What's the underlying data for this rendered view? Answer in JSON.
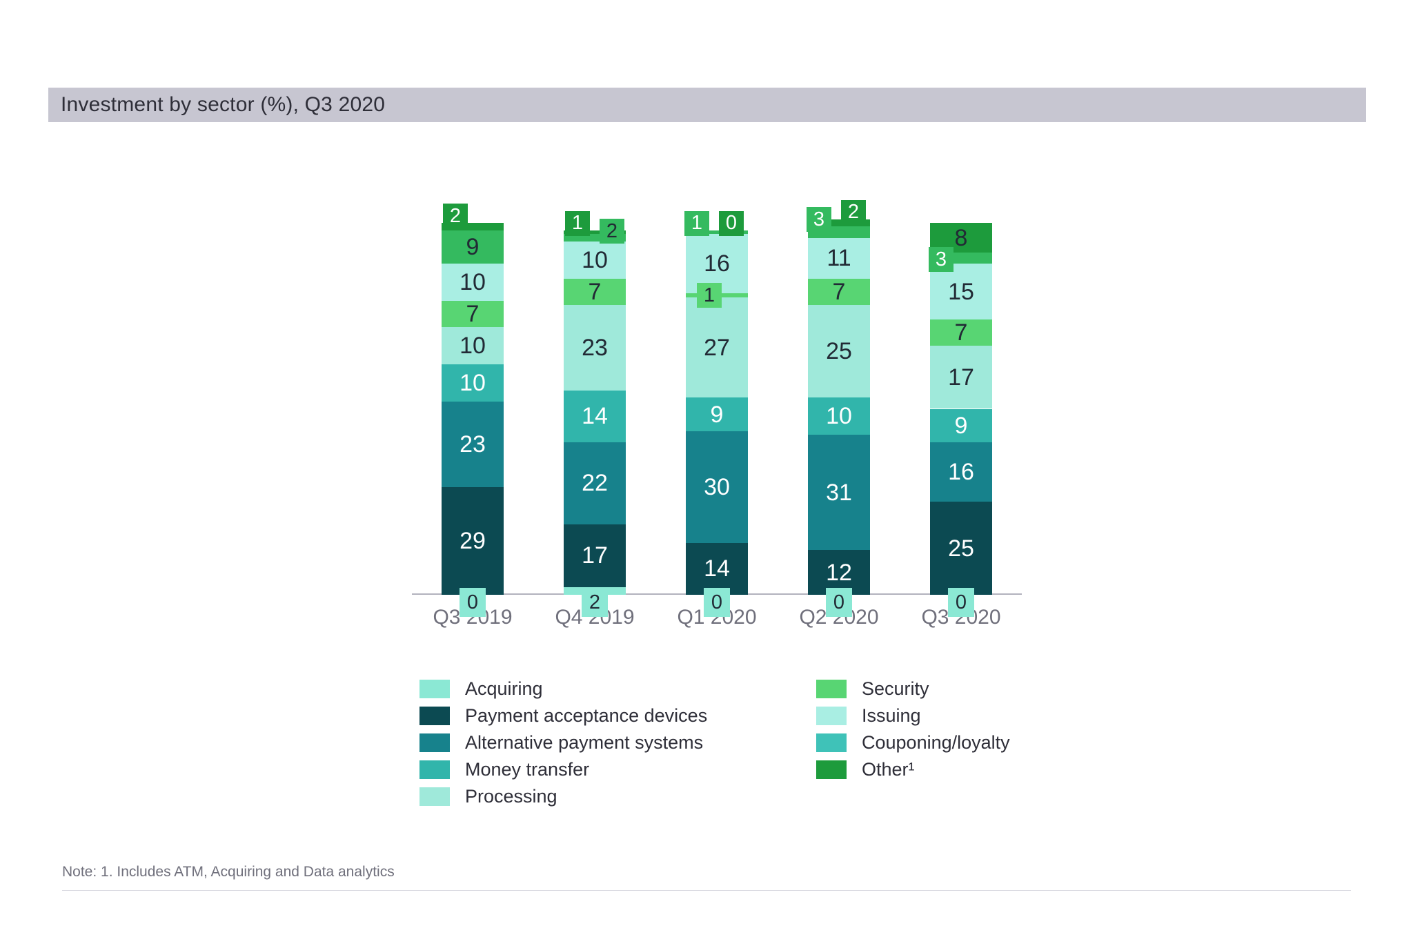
{
  "chart_data": {
    "type": "bar",
    "variant": "stacked-percent-column",
    "title": "Investment by sector (%), Q3 2020",
    "categories": [
      "Q3 2019",
      "Q4 2019",
      "Q1 2020",
      "Q2 2020",
      "Q3 2020"
    ],
    "ylim": [
      0,
      100
    ],
    "grid": false,
    "axis_labels_shown": "x-only",
    "legend_position": "bottom-two-columns",
    "series": [
      {
        "key": "acquiring",
        "name": "Acquiring",
        "values": [
          0,
          2,
          0,
          0,
          0
        ]
      },
      {
        "key": "payment_acceptance_devices",
        "name": "Payment acceptance devices",
        "values": [
          29,
          17,
          14,
          12,
          25
        ]
      },
      {
        "key": "alternative_payment_systems",
        "name": "Alternative payment systems",
        "values": [
          23,
          22,
          30,
          31,
          16
        ]
      },
      {
        "key": "money_transfer",
        "name": "Money transfer",
        "values": [
          10,
          14,
          9,
          10,
          9
        ]
      },
      {
        "key": "processing",
        "name": "Processing",
        "values": [
          10,
          23,
          27,
          25,
          17
        ]
      },
      {
        "key": "security",
        "name": "Security",
        "values": [
          7,
          7,
          1,
          7,
          7
        ]
      },
      {
        "key": "issuing",
        "name": "Issuing",
        "values": [
          10,
          10,
          16,
          11,
          15
        ]
      },
      {
        "key": "couponing_loyalty",
        "name": "Couponing/loyalty",
        "values": [
          9,
          2,
          1,
          3,
          3
        ]
      },
      {
        "key": "other",
        "name": "Other¹",
        "values": [
          2,
          1,
          0,
          2,
          8
        ]
      }
    ],
    "legend": {
      "left_column": [
        "acquiring",
        "payment_acceptance_devices",
        "alternative_payment_systems",
        "money_transfer",
        "processing"
      ],
      "right_column": [
        "security",
        "issuing",
        "couponing_loyalty",
        "other"
      ]
    },
    "colors": {
      "acquiring": "#8BE8D4",
      "payment_acceptance_devices": "#0C4A52",
      "alternative_payment_systems": "#17828C",
      "money_transfer": "#31B5AB",
      "processing": "#9FE9DA",
      "security": "#58D573",
      "issuing": "#A9EEE3",
      "couponing_loyalty": "#34BA5F",
      "couponing_loyalty_legend": "#3FC2B8",
      "other": "#1D9B3C"
    }
  },
  "note": {
    "text": "Note: 1. Includes ATM, Acquiring and Data analytics"
  },
  "theme": {
    "title_bar_bg": "#C7C6D1",
    "axis_line_color": "#B2B2BD",
    "text_dark": "#222A35",
    "text_gray": "#6F6F7B",
    "legend_text": "#2E2E38",
    "rule_color": "#DADAE1",
    "label_on_dark": "#FFFFFF"
  }
}
